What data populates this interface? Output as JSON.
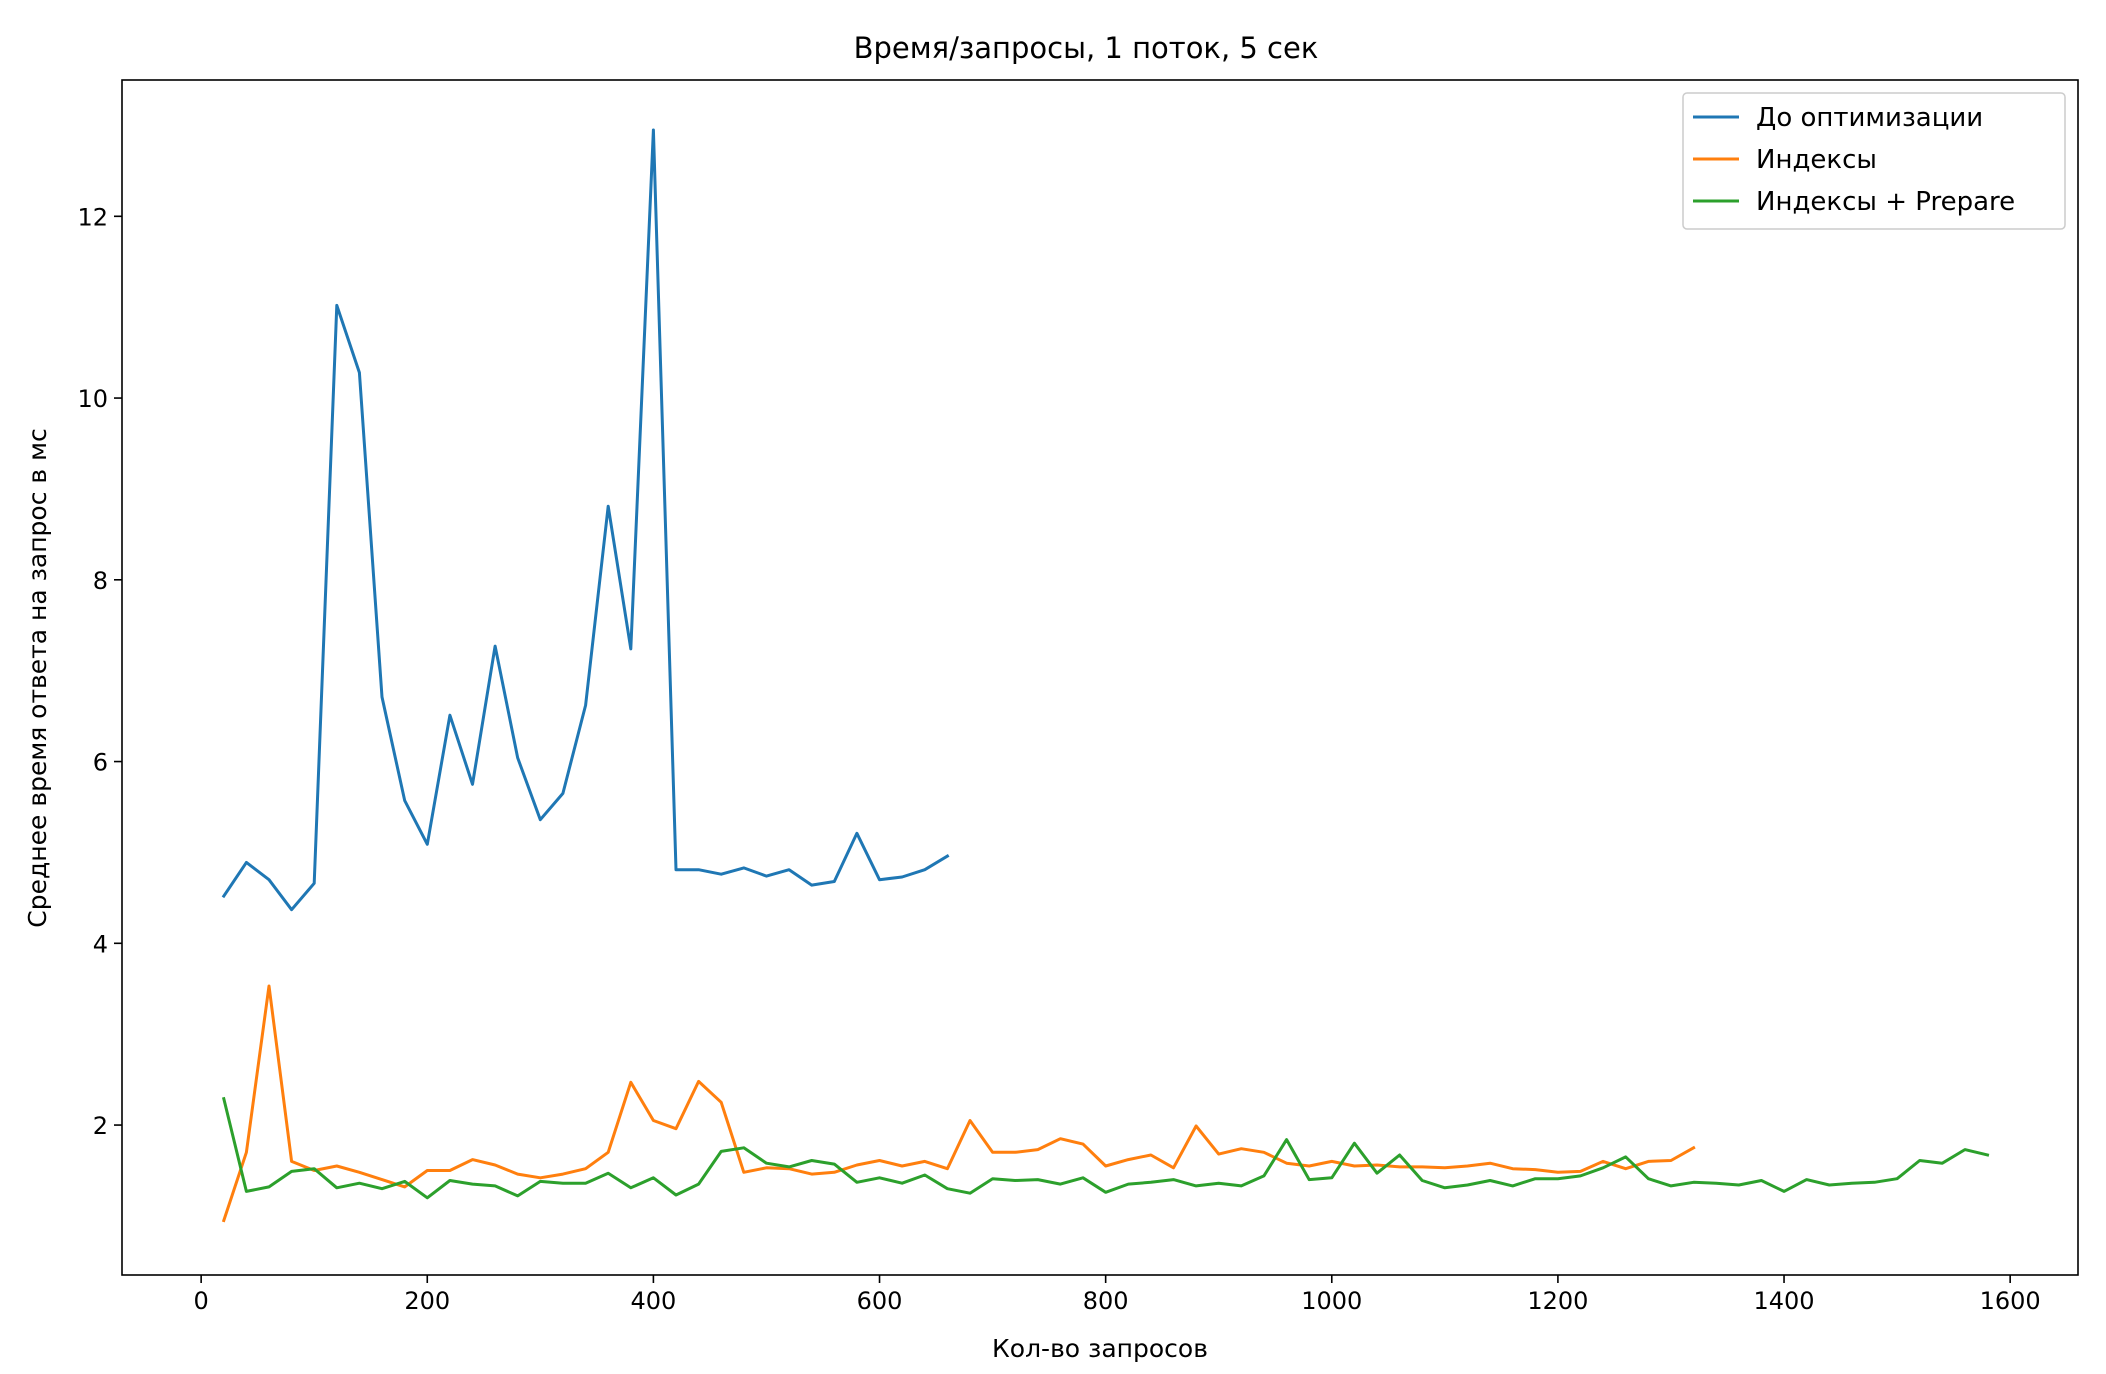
{
  "chart_data": {
    "type": "line",
    "title": "Время/запросы, 1 поток, 5 сек",
    "xlabel": "Кол-во запросов",
    "ylabel": "Среднее время ответа на запрос в мс",
    "xlim": [
      -70,
      1660
    ],
    "ylim": [
      0.35,
      13.5
    ],
    "xticks": [
      0,
      200,
      400,
      600,
      800,
      1000,
      1200,
      1400,
      1600
    ],
    "yticks": [
      2,
      4,
      6,
      8,
      10,
      12
    ],
    "grid": false,
    "legend_position": "top-right",
    "series": [
      {
        "name": "До оптимизации",
        "color": "#1f77b4",
        "x": [
          20,
          40,
          60,
          80,
          100,
          120,
          140,
          160,
          180,
          200,
          220,
          240,
          260,
          280,
          300,
          320,
          340,
          360,
          380,
          400,
          420,
          440,
          460,
          480,
          500,
          520,
          540,
          560,
          580,
          600,
          620,
          640,
          660
        ],
        "y": [
          4.52,
          4.89,
          4.7,
          4.37,
          4.66,
          11.02,
          10.28,
          6.71,
          5.57,
          5.09,
          6.51,
          5.75,
          7.27,
          6.04,
          5.36,
          5.65,
          6.62,
          8.81,
          7.24,
          12.95,
          4.81,
          4.81,
          4.76,
          4.83,
          4.74,
          4.81,
          4.64,
          4.68,
          5.21,
          4.7,
          4.73,
          4.81,
          4.96
        ]
      },
      {
        "name": "Индексы",
        "color": "#ff7f0e",
        "x": [
          20,
          40,
          60,
          80,
          100,
          120,
          140,
          160,
          180,
          200,
          220,
          240,
          260,
          280,
          300,
          320,
          340,
          360,
          380,
          400,
          420,
          440,
          460,
          480,
          500,
          520,
          540,
          560,
          580,
          600,
          620,
          640,
          660,
          680,
          700,
          720,
          740,
          760,
          780,
          800,
          820,
          840,
          860,
          880,
          900,
          920,
          940,
          960,
          980,
          1000,
          1020,
          1040,
          1060,
          1080,
          1100,
          1120,
          1140,
          1160,
          1180,
          1200,
          1220,
          1240,
          1260,
          1280,
          1300,
          1320
        ],
        "y": [
          0.95,
          1.7,
          3.53,
          1.6,
          1.5,
          1.55,
          1.48,
          1.4,
          1.32,
          1.5,
          1.5,
          1.62,
          1.56,
          1.46,
          1.42,
          1.46,
          1.52,
          1.7,
          2.47,
          2.05,
          1.96,
          2.48,
          2.25,
          1.48,
          1.53,
          1.52,
          1.46,
          1.48,
          1.56,
          1.61,
          1.55,
          1.6,
          1.52,
          2.05,
          1.7,
          1.7,
          1.73,
          1.85,
          1.79,
          1.55,
          1.62,
          1.67,
          1.53,
          1.99,
          1.68,
          1.74,
          1.7,
          1.58,
          1.55,
          1.6,
          1.55,
          1.56,
          1.54,
          1.54,
          1.53,
          1.55,
          1.58,
          1.52,
          1.51,
          1.48,
          1.49,
          1.6,
          1.52,
          1.6,
          1.61,
          1.75
        ]
      },
      {
        "name": "Индексы + Prepare",
        "color": "#2ca02c",
        "x": [
          20,
          40,
          60,
          80,
          100,
          120,
          140,
          160,
          180,
          200,
          220,
          240,
          260,
          280,
          300,
          320,
          340,
          360,
          380,
          400,
          420,
          440,
          460,
          480,
          500,
          520,
          540,
          560,
          580,
          600,
          620,
          640,
          660,
          680,
          700,
          720,
          740,
          760,
          780,
          800,
          820,
          840,
          860,
          880,
          900,
          920,
          940,
          960,
          980,
          1000,
          1020,
          1040,
          1060,
          1080,
          1100,
          1120,
          1140,
          1160,
          1180,
          1200,
          1220,
          1240,
          1260,
          1280,
          1300,
          1320,
          1340,
          1360,
          1380,
          1400,
          1420,
          1440,
          1460,
          1480,
          1500,
          1520,
          1540,
          1560,
          1580
        ],
        "y": [
          2.29,
          1.27,
          1.32,
          1.49,
          1.52,
          1.31,
          1.36,
          1.3,
          1.38,
          1.2,
          1.39,
          1.35,
          1.33,
          1.22,
          1.38,
          1.36,
          1.36,
          1.47,
          1.31,
          1.42,
          1.23,
          1.35,
          1.71,
          1.75,
          1.58,
          1.54,
          1.61,
          1.57,
          1.37,
          1.42,
          1.36,
          1.45,
          1.3,
          1.25,
          1.41,
          1.39,
          1.4,
          1.35,
          1.42,
          1.26,
          1.35,
          1.37,
          1.4,
          1.33,
          1.36,
          1.33,
          1.44,
          1.84,
          1.4,
          1.42,
          1.8,
          1.47,
          1.67,
          1.39,
          1.31,
          1.34,
          1.39,
          1.33,
          1.41,
          1.41,
          1.44,
          1.53,
          1.65,
          1.41,
          1.33,
          1.37,
          1.36,
          1.34,
          1.39,
          1.27,
          1.4,
          1.34,
          1.36,
          1.37,
          1.41,
          1.61,
          1.58,
          1.73,
          1.67
        ]
      }
    ]
  }
}
